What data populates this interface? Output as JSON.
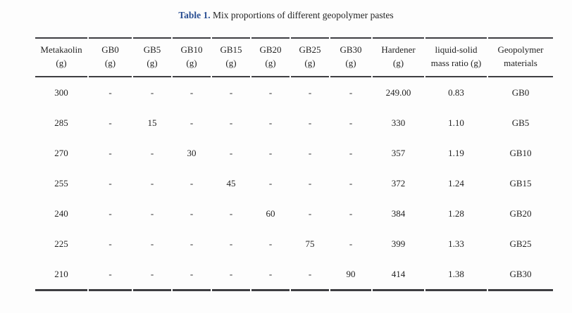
{
  "caption": {
    "label": "Table 1.",
    "text": " Mix proportions of different geopolymer pastes"
  },
  "colors": {
    "caption_accent": "#2a4f93",
    "rule": "#3e3e42",
    "text": "#232323",
    "background": "#fdfdfd"
  },
  "table": {
    "columns": [
      {
        "line1": "Metakaolin",
        "line2": "(g)"
      },
      {
        "line1": "GB0",
        "line2": "(g)"
      },
      {
        "line1": "GB5",
        "line2": "(g)"
      },
      {
        "line1": "GB10",
        "line2": "(g)"
      },
      {
        "line1": "GB15",
        "line2": "(g)"
      },
      {
        "line1": "GB20",
        "line2": "(g)"
      },
      {
        "line1": "GB25",
        "line2": "(g)"
      },
      {
        "line1": "GB30",
        "line2": "(g)"
      },
      {
        "line1": "Hardener",
        "line2": "(g)"
      },
      {
        "line1": "liquid-solid",
        "line2": "mass ratio (g)"
      },
      {
        "line1": "Geopolymer",
        "line2": "materials"
      }
    ],
    "rows": [
      [
        "300",
        "-",
        "-",
        "-",
        "-",
        "-",
        "-",
        "-",
        "249.00",
        "0.83",
        "GB0"
      ],
      [
        "285",
        "-",
        "15",
        "-",
        "-",
        "-",
        "-",
        "-",
        "330",
        "1.10",
        "GB5"
      ],
      [
        "270",
        "-",
        "-",
        "30",
        "-",
        "-",
        "-",
        "-",
        "357",
        "1.19",
        "GB10"
      ],
      [
        "255",
        "-",
        "-",
        "-",
        "45",
        "-",
        "-",
        "-",
        "372",
        "1.24",
        "GB15"
      ],
      [
        "240",
        "-",
        "-",
        "-",
        "-",
        "60",
        "-",
        "-",
        "384",
        "1.28",
        "GB20"
      ],
      [
        "225",
        "-",
        "-",
        "-",
        "-",
        "-",
        "75",
        "-",
        "399",
        "1.33",
        "GB25"
      ],
      [
        "210",
        "-",
        "-",
        "-",
        "-",
        "-",
        "-",
        "90",
        "414",
        "1.38",
        "GB30"
      ]
    ]
  }
}
